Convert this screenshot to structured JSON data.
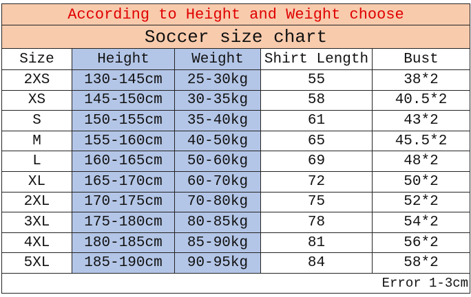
{
  "title": "According to Height and Weight choose",
  "subtitle": "Soccer size chart",
  "columns": [
    "Size",
    "Height",
    "Weight",
    "Shirt Length",
    "Bust"
  ],
  "rows": [
    [
      "2XS",
      "130-145cm",
      "25-30kg",
      "55",
      "38*2"
    ],
    [
      "XS",
      "145-150cm",
      "30-35kg",
      "58",
      "40.5*2"
    ],
    [
      "S",
      "150-155cm",
      "35-40kg",
      "61",
      "43*2"
    ],
    [
      "M",
      "155-160cm",
      "40-50kg",
      "65",
      "45.5*2"
    ],
    [
      "L",
      "160-165cm",
      "50-60kg",
      "69",
      "48*2"
    ],
    [
      "XL",
      "165-170cm",
      "60-70kg",
      "72",
      "50*2"
    ],
    [
      "2XL",
      "170-175cm",
      "70-80kg",
      "75",
      "52*2"
    ],
    [
      "3XL",
      "175-180cm",
      "80-85kg",
      "78",
      "54*2"
    ],
    [
      "4XL",
      "180-185cm",
      "85-90kg",
      "81",
      "56*2"
    ],
    [
      "5XL",
      "185-190cm",
      "90-95kg",
      "84",
      "58*2"
    ]
  ],
  "note": "Error 1-3cm",
  "colors": {
    "header_bg": "#F8CBAD",
    "title_text": "#E00000",
    "highlight_col_bg": "#B4C6E7"
  }
}
